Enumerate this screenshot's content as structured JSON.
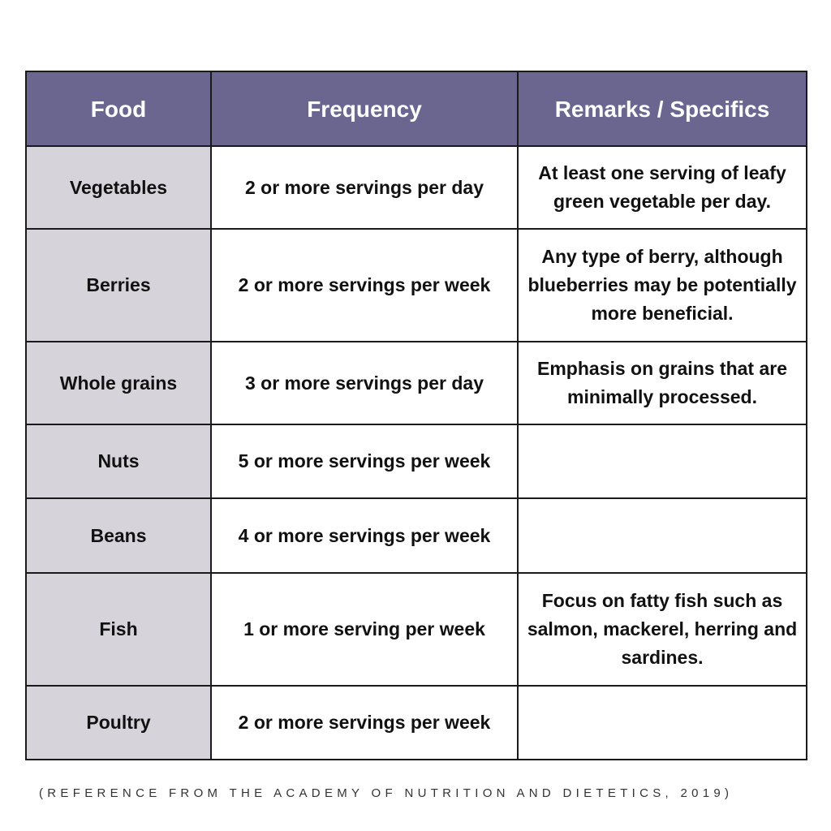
{
  "table": {
    "headers": {
      "food": "Food",
      "frequency": "Frequency",
      "remarks": "Remarks / Specifics"
    },
    "rows": [
      {
        "food": "Vegetables",
        "frequency": "2 or more servings per day",
        "remarks": "At least one serving of leafy green vegetable per day."
      },
      {
        "food": "Berries",
        "frequency": "2 or more servings per week",
        "remarks": "Any type of berry, although blueberries may be potentially more beneficial."
      },
      {
        "food": "Whole grains",
        "frequency": "3 or more servings per day",
        "remarks": "Emphasis on grains that are minimally processed."
      },
      {
        "food": "Nuts",
        "frequency": "5 or more servings per week",
        "remarks": ""
      },
      {
        "food": "Beans",
        "frequency": "4 or more servings per week",
        "remarks": ""
      },
      {
        "food": "Fish",
        "frequency": "1 or more serving per week",
        "remarks": "Focus on fatty fish such as salmon, mackerel, herring and sardines."
      },
      {
        "food": "Poultry",
        "frequency": "2 or more servings per week",
        "remarks": ""
      }
    ]
  },
  "footnote": "(REFERENCE FROM THE ACADEMY OF NUTRITION AND DIETETICS, 2019)",
  "colors": {
    "header_bg": "#6b6690",
    "header_text": "#ffffff",
    "food_col_bg": "#d6d4da",
    "border": "#1a1a1a"
  }
}
